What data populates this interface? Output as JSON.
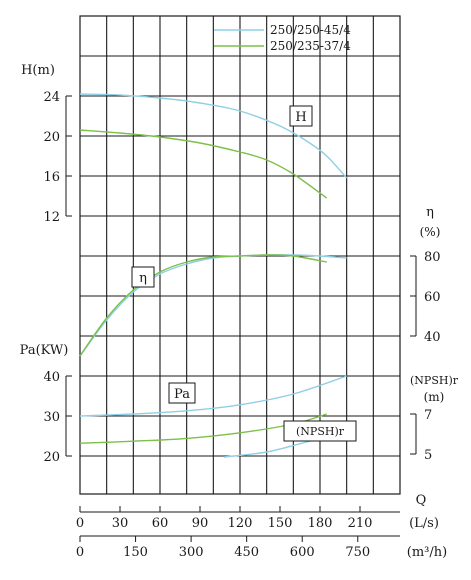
{
  "chart_data": {
    "type": "line",
    "legend": {
      "placement": "top-right",
      "entries": [
        {
          "name": "250/250-45/4",
          "color": "#8ecfe6"
        },
        {
          "name": "250/235-37/4",
          "color": "#7cbf4a"
        }
      ]
    },
    "x_axis": {
      "name": "Q",
      "flow_unit": "(L/s)",
      "flow_ticks": [
        "0",
        "30",
        "60",
        "90",
        "120",
        "150",
        "180",
        "210"
      ],
      "volume_unit": "(m³/h)",
      "volume_ticks": [
        "0",
        "150",
        "300",
        "450",
        "600",
        "750"
      ],
      "range": [
        0,
        240
      ]
    },
    "axes": {
      "head": {
        "label": "H(m)",
        "ticks": [
          "12",
          "16",
          "20",
          "24"
        ],
        "range": [
          12,
          24
        ]
      },
      "efficiency": {
        "label": "η",
        "unit": "(%)",
        "ticks": [
          "40",
          "60",
          "80"
        ],
        "range": [
          40,
          80
        ]
      },
      "power": {
        "label": "Pa(KW)",
        "ticks": [
          "20",
          "30",
          "40"
        ],
        "range": [
          20,
          40
        ]
      },
      "npsh": {
        "label": "(NPSH)r",
        "unit": "(m)",
        "ticks": [
          "5",
          "7"
        ],
        "range": [
          5,
          7
        ]
      }
    },
    "curve_labels": {
      "head": "H",
      "efficiency": "η",
      "power": "Pa",
      "npsh": "(NPSH)r"
    },
    "series": [
      {
        "name": "250/250-45/4",
        "color": "#8ecfe6",
        "head": [
          [
            0,
            24.2
          ],
          [
            30,
            24.1
          ],
          [
            60,
            23.8
          ],
          [
            90,
            23.3
          ],
          [
            120,
            22.5
          ],
          [
            150,
            21.0
          ],
          [
            170,
            19.5
          ],
          [
            185,
            18.0
          ],
          [
            200,
            15.8
          ]
        ],
        "efficiency": [
          [
            0,
            30
          ],
          [
            20,
            48
          ],
          [
            40,
            62
          ],
          [
            60,
            71
          ],
          [
            80,
            76
          ],
          [
            100,
            79
          ],
          [
            120,
            80
          ],
          [
            140,
            80.5
          ],
          [
            160,
            80.5
          ],
          [
            180,
            80
          ],
          [
            200,
            79
          ]
        ],
        "power": [
          [
            0,
            30
          ],
          [
            40,
            30.5
          ],
          [
            80,
            31.3
          ],
          [
            120,
            32.8
          ],
          [
            160,
            35.5
          ],
          [
            200,
            40
          ]
        ],
        "npsh": [
          [
            108,
            4.85
          ],
          [
            140,
            5.1
          ],
          [
            170,
            5.6
          ],
          [
            200,
            6.1
          ]
        ]
      },
      {
        "name": "250/235-37/4",
        "color": "#7cbf4a",
        "head": [
          [
            0,
            20.6
          ],
          [
            30,
            20.3
          ],
          [
            60,
            19.9
          ],
          [
            90,
            19.3
          ],
          [
            120,
            18.4
          ],
          [
            140,
            17.6
          ],
          [
            160,
            16.2
          ],
          [
            185,
            13.8
          ]
        ],
        "efficiency": [
          [
            0,
            30
          ],
          [
            20,
            49
          ],
          [
            40,
            63
          ],
          [
            60,
            72
          ],
          [
            80,
            77
          ],
          [
            100,
            79.5
          ],
          [
            120,
            80
          ],
          [
            140,
            80.5
          ],
          [
            160,
            80
          ],
          [
            185,
            77
          ]
        ],
        "power": [
          [
            0,
            23.2
          ],
          [
            40,
            23.7
          ],
          [
            80,
            24.4
          ],
          [
            120,
            25.8
          ],
          [
            160,
            28
          ],
          [
            185,
            30.5
          ]
        ]
      }
    ]
  }
}
